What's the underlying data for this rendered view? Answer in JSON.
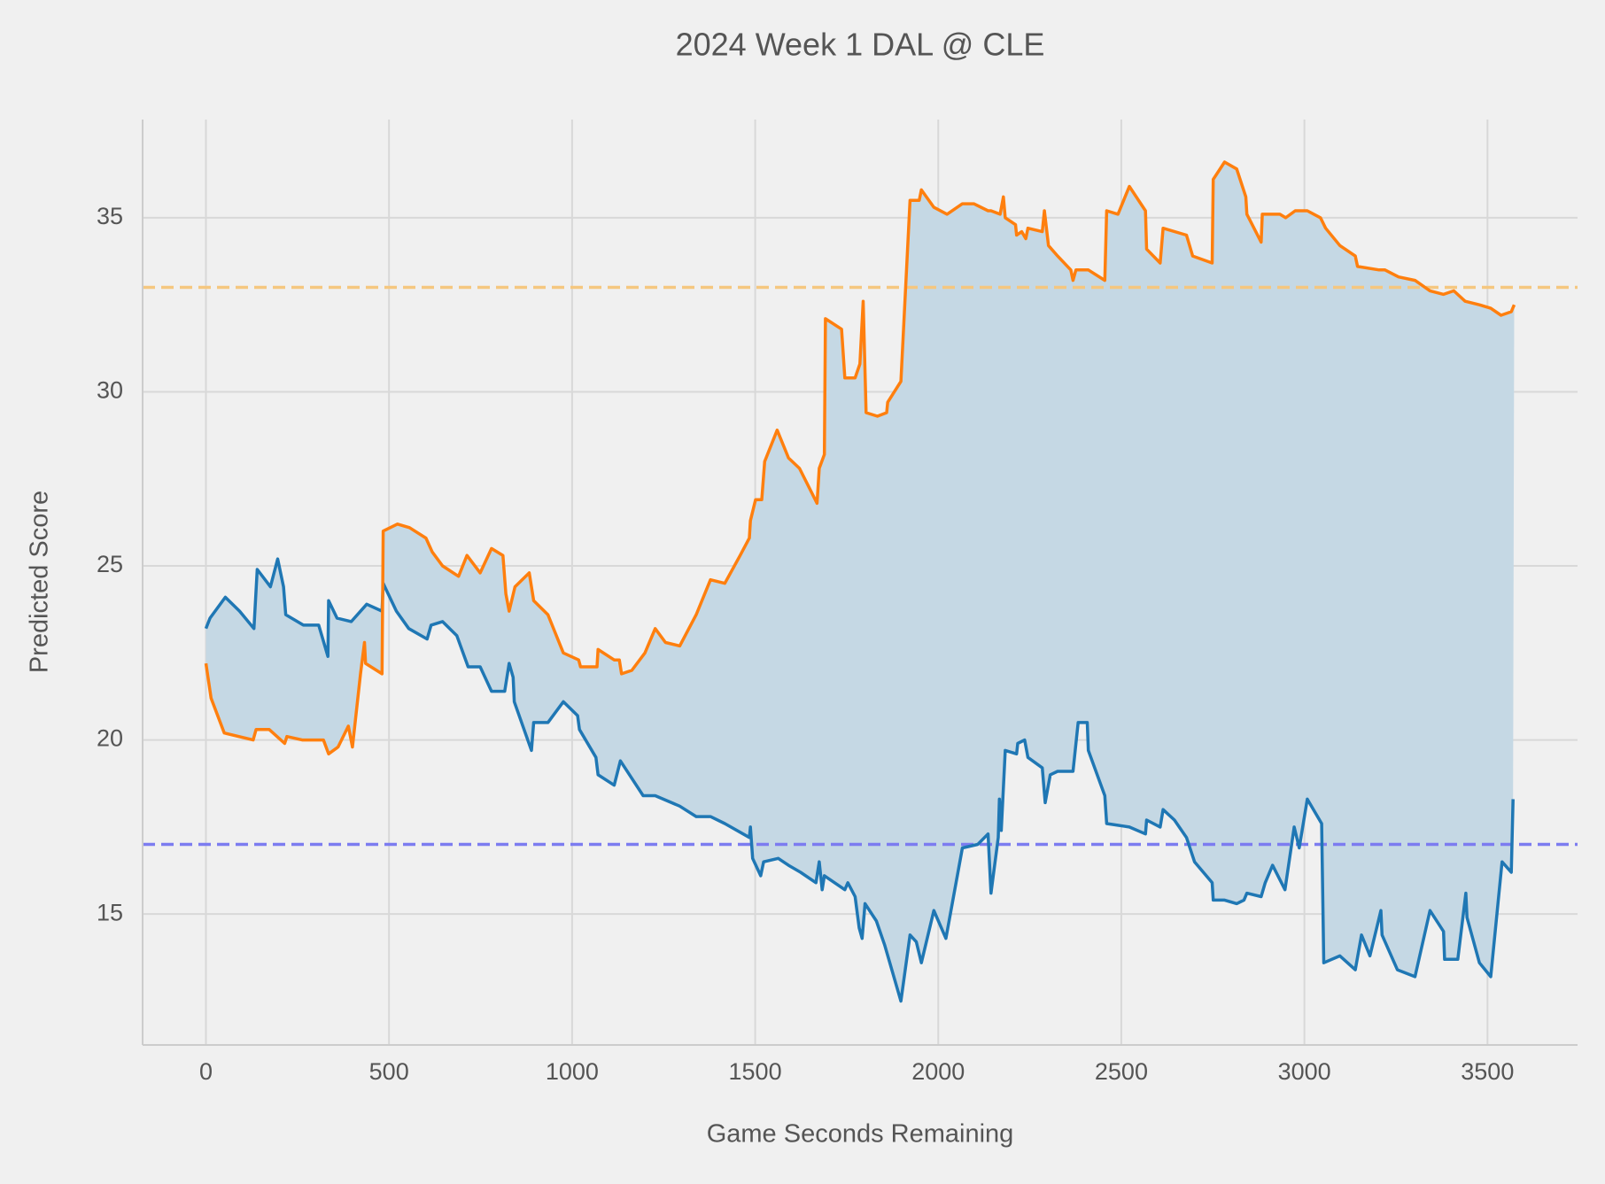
{
  "chart_data": {
    "type": "line",
    "title": "2024 Week 1 DAL @ CLE",
    "x_label": "Game Seconds Remaining",
    "y_label": "Predicted Score",
    "xlim": [
      -173,
      3746
    ],
    "ylim": [
      11.24,
      37.82
    ],
    "xticks": [
      0,
      500,
      1000,
      1500,
      2000,
      2500,
      3000,
      3500
    ],
    "yticks": [
      15,
      20,
      25,
      30,
      35
    ],
    "grid": true,
    "fill_between": true,
    "fill_color": "#c5d8e4",
    "hlines": [
      {
        "y": 33,
        "color": "#f5c77f"
      },
      {
        "y": 17,
        "color": "#7c7cf0"
      }
    ],
    "series": [
      {
        "color": "#1f77b4",
        "x": [
          0,
          11,
          53,
          92,
          131,
          140,
          176,
          196,
          212,
          218,
          266,
          308,
          333,
          335,
          358,
          397,
          439,
          481,
          484,
          520,
          554,
          604,
          615,
          646,
          685,
          716,
          749,
          780,
          816,
          828,
          839,
          842,
          889,
          895,
          934,
          976,
          1015,
          1020,
          1065,
          1071,
          1115,
          1132,
          1194,
          1227,
          1294,
          1339,
          1378,
          1417,
          1484,
          1487,
          1493,
          1515,
          1523,
          1563,
          1591,
          1624,
          1666,
          1675,
          1683,
          1689,
          1745,
          1753,
          1773,
          1784,
          1792,
          1800,
          1831,
          1854,
          1898,
          1923,
          1940,
          1954,
          1988,
          2021,
          2066,
          2108,
          2136,
          2144,
          2164,
          2167,
          2172,
          2183,
          2214,
          2217,
          2236,
          2245,
          2284,
          2292,
          2306,
          2326,
          2368,
          2382,
          2407,
          2410,
          2455,
          2460,
          2522,
          2566,
          2569,
          2606,
          2614,
          2645,
          2678,
          2700,
          2748,
          2751,
          2782,
          2815,
          2835,
          2843,
          2882,
          2893,
          2913,
          2947,
          2972,
          2986,
          3008,
          3047,
          3053,
          3097,
          3139,
          3156,
          3179,
          3209,
          3212,
          3254,
          3302,
          3343,
          3380,
          3383,
          3419,
          3441,
          3444,
          3478,
          3509,
          3540,
          3565,
          3570
        ],
        "values": [
          23.2,
          23.5,
          24.1,
          23.7,
          23.2,
          24.9,
          24.4,
          25.2,
          24.4,
          23.6,
          23.3,
          23.3,
          22.4,
          24.0,
          23.5,
          23.4,
          23.9,
          23.7,
          24.5,
          23.7,
          23.2,
          22.9,
          23.3,
          23.4,
          23.0,
          22.1,
          22.1,
          21.4,
          21.4,
          22.2,
          21.8,
          21.1,
          19.7,
          20.5,
          20.5,
          21.1,
          20.7,
          20.3,
          19.5,
          19.0,
          18.7,
          19.4,
          18.4,
          18.4,
          18.1,
          17.8,
          17.8,
          17.6,
          17.2,
          17.5,
          16.6,
          16.1,
          16.5,
          16.6,
          16.4,
          16.2,
          15.9,
          16.5,
          15.7,
          16.1,
          15.7,
          15.9,
          15.5,
          14.6,
          14.3,
          15.3,
          14.8,
          14.1,
          12.5,
          14.4,
          14.2,
          13.6,
          15.1,
          14.3,
          16.9,
          17.0,
          17.3,
          15.6,
          17.2,
          18.3,
          17.4,
          19.7,
          19.6,
          19.9,
          20.0,
          19.5,
          19.2,
          18.2,
          19.0,
          19.1,
          19.1,
          20.5,
          20.5,
          19.7,
          18.4,
          17.6,
          17.5,
          17.3,
          17.7,
          17.5,
          18.0,
          17.7,
          17.2,
          16.5,
          15.9,
          15.4,
          15.4,
          15.3,
          15.4,
          15.6,
          15.5,
          15.9,
          16.4,
          15.7,
          17.5,
          16.9,
          18.3,
          17.6,
          13.6,
          13.8,
          13.4,
          14.4,
          13.8,
          15.1,
          14.4,
          13.4,
          13.2,
          15.1,
          14.5,
          13.7,
          13.7,
          15.6,
          14.9,
          13.6,
          13.2,
          16.5,
          16.2,
          18.3
        ]
      },
      {
        "color": "#ff7f0e",
        "x": [
          0,
          14,
          50,
          129,
          137,
          173,
          215,
          221,
          263,
          321,
          335,
          361,
          389,
          400,
          422,
          433,
          436,
          481,
          484,
          523,
          556,
          601,
          618,
          646,
          690,
          713,
          749,
          780,
          811,
          819,
          828,
          844,
          883,
          895,
          934,
          976,
          1018,
          1023,
          1068,
          1071,
          1115,
          1129,
          1135,
          1163,
          1199,
          1227,
          1255,
          1294,
          1339,
          1378,
          1417,
          1459,
          1484,
          1487,
          1501,
          1518,
          1526,
          1560,
          1591,
          1621,
          1669,
          1675,
          1689,
          1692,
          1736,
          1745,
          1773,
          1786,
          1795,
          1803,
          1834,
          1859,
          1862,
          1898,
          1923,
          1948,
          1954,
          1988,
          2024,
          2066,
          2097,
          2136,
          2144,
          2169,
          2178,
          2183,
          2211,
          2214,
          2228,
          2239,
          2245,
          2284,
          2290,
          2301,
          2326,
          2362,
          2368,
          2376,
          2410,
          2455,
          2460,
          2491,
          2522,
          2566,
          2569,
          2606,
          2614,
          2678,
          2695,
          2748,
          2751,
          2782,
          2815,
          2840,
          2843,
          2882,
          2885,
          2933,
          2949,
          2975,
          3008,
          3044,
          3058,
          3097,
          3139,
          3145,
          3204,
          3220,
          3257,
          3302,
          3343,
          3380,
          3408,
          3439,
          3478,
          3509,
          3537,
          3565,
          3573
        ],
        "values": [
          22.2,
          21.2,
          20.2,
          20.0,
          20.3,
          20.3,
          19.9,
          20.1,
          20.0,
          20.0,
          19.6,
          19.8,
          20.4,
          19.8,
          21.9,
          22.8,
          22.2,
          21.9,
          26.0,
          26.2,
          26.1,
          25.8,
          25.4,
          25.0,
          24.7,
          25.3,
          24.8,
          25.5,
          25.3,
          24.2,
          23.7,
          24.4,
          24.8,
          24.0,
          23.6,
          22.5,
          22.3,
          22.1,
          22.1,
          22.6,
          22.3,
          22.3,
          21.9,
          22.0,
          22.5,
          23.2,
          22.8,
          22.7,
          23.6,
          24.6,
          24.5,
          25.3,
          25.8,
          26.3,
          26.9,
          26.9,
          28.0,
          28.9,
          28.1,
          27.8,
          26.8,
          27.8,
          28.2,
          32.1,
          31.8,
          30.4,
          30.4,
          30.8,
          32.6,
          29.4,
          29.3,
          29.4,
          29.7,
          30.3,
          35.5,
          35.5,
          35.8,
          35.3,
          35.1,
          35.4,
          35.4,
          35.2,
          35.2,
          35.1,
          35.6,
          35.0,
          34.8,
          34.5,
          34.6,
          34.4,
          34.7,
          34.6,
          35.2,
          34.2,
          33.9,
          33.5,
          33.2,
          33.5,
          33.5,
          33.2,
          35.2,
          35.1,
          35.9,
          35.2,
          34.1,
          33.7,
          34.7,
          34.5,
          33.9,
          33.7,
          36.1,
          36.6,
          36.4,
          35.6,
          35.1,
          34.3,
          35.1,
          35.1,
          35.0,
          35.2,
          35.2,
          35.0,
          34.7,
          34.2,
          33.9,
          33.6,
          33.5,
          33.5,
          33.3,
          33.2,
          32.9,
          32.8,
          32.9,
          32.6,
          32.5,
          32.4,
          32.2,
          32.3,
          32.5
        ]
      }
    ]
  }
}
